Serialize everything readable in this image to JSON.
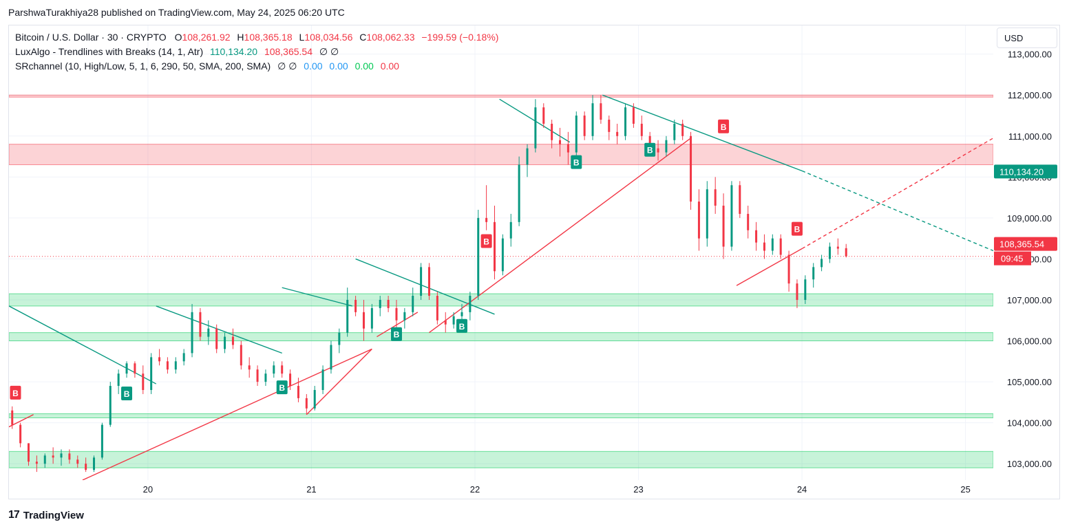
{
  "publisher": "ParshwaTurakhiya28 published on TradingView.com, May 24, 2025 06:20 UTC",
  "legend": {
    "symbol": "Bitcoin / U.S. Dollar · 30 · CRYPTO",
    "open_label": "O",
    "open": "108,261.92",
    "high_label": "H",
    "high": "108,365.18",
    "low_label": "L",
    "low": "108,034.56",
    "close_label": "C",
    "close": "108,062.33",
    "change": "−199.59 (−0.18%)",
    "ind1_name": "LuxAlgo - Trendlines with Breaks (14, 1, Atr)",
    "ind1_v1": "110,134.20",
    "ind1_v2": "108,365.54",
    "ind1_v3": "∅ ∅",
    "ind2_name": "SRchannel (10, High/Low, 5, 1, 6, 290, 50, SMA, 200, SMA)",
    "ind2_na": "∅ ∅",
    "ind2_v1": "0.00",
    "ind2_v2": "0.00",
    "ind2_v3": "0.00",
    "ind2_v4": "0.00"
  },
  "currency_button": "USD",
  "footer_brand": "TradingView",
  "footer_logo": "17",
  "colors": {
    "up": "#089981",
    "down": "#f23645",
    "resistance": "#f23645",
    "support": "#00c853",
    "trend_down": "#089981",
    "trend_up": "#f23645"
  },
  "chart_data": {
    "type": "candlestick",
    "symbol": "Bitcoin / U.S. Dollar",
    "interval": "30",
    "y_ticks": [
      103000,
      104000,
      105000,
      106000,
      107000,
      108000,
      109000,
      110000,
      111000,
      112000,
      113000
    ],
    "y_tick_labels": [
      "103,000.00",
      "104,000.00",
      "105,000.00",
      "106,000.00",
      "107,000.00",
      "108,000.00",
      "109,000.00",
      "110,000.00",
      "111,000.00",
      "112,000.00",
      "113,000.00"
    ],
    "ylim": [
      102600,
      113700
    ],
    "x_ticks": [
      20,
      21,
      22,
      23,
      24,
      25
    ],
    "x_tick_labels": [
      "20",
      "21",
      "22",
      "23",
      "24",
      "25"
    ],
    "xlim": [
      19.15,
      25.17
    ],
    "last_price": 108062.33,
    "price_labels": [
      {
        "value": 110134.2,
        "text": "110,134.20",
        "color": "#089981"
      },
      {
        "value": 108365.54,
        "text": "108,365.54",
        "color": "#f23645"
      }
    ],
    "countdown": "09:45",
    "zones": [
      {
        "type": "resistance",
        "from": 111950,
        "to": 112000
      },
      {
        "type": "resistance",
        "from": 110300,
        "to": 110800
      },
      {
        "type": "support",
        "from": 106850,
        "to": 107150
      },
      {
        "type": "support",
        "from": 106000,
        "to": 106200
      },
      {
        "type": "support",
        "from": 104120,
        "to": 104220
      },
      {
        "type": "support",
        "from": 102900,
        "to": 103300
      }
    ],
    "candles": [
      [
        19.17,
        104300,
        104400,
        103850,
        103950
      ],
      [
        19.22,
        103950,
        104000,
        103400,
        103500
      ],
      [
        19.27,
        103500,
        103500,
        102950,
        103050
      ],
      [
        19.32,
        103050,
        103200,
        102800,
        103000
      ],
      [
        19.37,
        103000,
        103250,
        102900,
        103200
      ],
      [
        19.42,
        103200,
        103400,
        103000,
        103150
      ],
      [
        19.47,
        103150,
        103350,
        102950,
        103250
      ],
      [
        19.52,
        103250,
        103350,
        103000,
        103100
      ],
      [
        19.57,
        103100,
        103200,
        102900,
        103000
      ],
      [
        19.62,
        103000,
        103150,
        102800,
        102850
      ],
      [
        19.67,
        102850,
        103200,
        102800,
        103150
      ],
      [
        19.72,
        103150,
        104000,
        103100,
        103950
      ],
      [
        19.77,
        103950,
        105000,
        103900,
        104900
      ],
      [
        19.82,
        104900,
        105300,
        104700,
        105200
      ],
      [
        19.87,
        105200,
        105500,
        105100,
        105450
      ],
      [
        19.92,
        105450,
        105500,
        105100,
        105200
      ],
      [
        19.97,
        105200,
        105400,
        104700,
        104800
      ],
      [
        20.02,
        104800,
        105700,
        104700,
        105600
      ],
      [
        20.07,
        105600,
        105800,
        105400,
        105500
      ],
      [
        20.12,
        105500,
        105600,
        105200,
        105300
      ],
      [
        20.17,
        105300,
        105600,
        105200,
        105500
      ],
      [
        20.22,
        105500,
        105800,
        105400,
        105700
      ],
      [
        20.27,
        105700,
        106900,
        105600,
        106700
      ],
      [
        20.32,
        106700,
        106800,
        106000,
        106100
      ],
      [
        20.37,
        106100,
        106500,
        105900,
        106300
      ],
      [
        20.42,
        106300,
        106400,
        105700,
        105800
      ],
      [
        20.47,
        105800,
        106200,
        105700,
        106100
      ],
      [
        20.52,
        106100,
        106300,
        105800,
        105900
      ],
      [
        20.57,
        105900,
        106000,
        105300,
        105400
      ],
      [
        20.62,
        105400,
        105600,
        105100,
        105300
      ],
      [
        20.67,
        105300,
        105400,
        104900,
        105000
      ],
      [
        20.72,
        105000,
        105300,
        104900,
        105200
      ],
      [
        20.77,
        105200,
        105500,
        105100,
        105400
      ],
      [
        20.82,
        105400,
        105500,
        105100,
        105200
      ],
      [
        20.87,
        105200,
        105300,
        104800,
        104900
      ],
      [
        20.92,
        104900,
        105100,
        104500,
        104600
      ],
      [
        20.97,
        104600,
        104700,
        104200,
        104350
      ],
      [
        21.02,
        104350,
        104900,
        104300,
        104800
      ],
      [
        21.07,
        104800,
        105400,
        104700,
        105300
      ],
      [
        21.12,
        105300,
        106000,
        105200,
        105900
      ],
      [
        21.17,
        105900,
        106300,
        105700,
        106200
      ],
      [
        21.22,
        106200,
        107300,
        106100,
        107000
      ],
      [
        21.27,
        107000,
        107100,
        106600,
        106700
      ],
      [
        21.32,
        106700,
        107000,
        106000,
        106300
      ],
      [
        21.37,
        106300,
        106900,
        106200,
        106800
      ],
      [
        21.42,
        106800,
        107100,
        106600,
        107000
      ],
      [
        21.47,
        107000,
        107100,
        106700,
        106800
      ],
      [
        21.52,
        106800,
        107000,
        106300,
        106500
      ],
      [
        21.57,
        106500,
        106800,
        106300,
        106700
      ],
      [
        21.62,
        106700,
        107300,
        106600,
        107100
      ],
      [
        21.67,
        107100,
        107900,
        107000,
        107800
      ],
      [
        21.72,
        107800,
        107900,
        107000,
        107100
      ],
      [
        21.77,
        107100,
        107200,
        106400,
        106500
      ],
      [
        21.82,
        106500,
        106700,
        106200,
        106400
      ],
      [
        21.87,
        106400,
        106700,
        106300,
        106600
      ],
      [
        21.92,
        106600,
        106900,
        106400,
        106700
      ],
      [
        21.97,
        106700,
        107200,
        106500,
        107100
      ],
      [
        22.02,
        107100,
        109200,
        107000,
        109000
      ],
      [
        22.07,
        109000,
        109800,
        108700,
        108900
      ],
      [
        22.12,
        108900,
        109300,
        107500,
        107700
      ],
      [
        22.17,
        107700,
        108600,
        107600,
        108500
      ],
      [
        22.22,
        108500,
        109100,
        108300,
        108900
      ],
      [
        22.27,
        108900,
        110500,
        108800,
        110300
      ],
      [
        22.32,
        110300,
        110800,
        110000,
        110700
      ],
      [
        22.37,
        110700,
        111900,
        110600,
        111700
      ],
      [
        22.42,
        111700,
        111800,
        111200,
        111300
      ],
      [
        22.47,
        111300,
        111400,
        110700,
        110900
      ],
      [
        22.52,
        110900,
        111200,
        110500,
        110800
      ],
      [
        22.57,
        110800,
        111100,
        110300,
        110600
      ],
      [
        22.62,
        110600,
        111600,
        110500,
        111500
      ],
      [
        22.67,
        111500,
        111600,
        110900,
        111000
      ],
      [
        22.72,
        111000,
        112000,
        110900,
        111800
      ],
      [
        22.77,
        111800,
        112000,
        111300,
        111400
      ],
      [
        22.82,
        111400,
        111500,
        110900,
        111100
      ],
      [
        22.87,
        111100,
        111300,
        110800,
        111000
      ],
      [
        22.92,
        111000,
        111800,
        110900,
        111700
      ],
      [
        22.97,
        111700,
        111800,
        111200,
        111300
      ],
      [
        23.02,
        111300,
        111500,
        110900,
        111000
      ],
      [
        23.07,
        111000,
        111100,
        110600,
        110700
      ],
      [
        23.12,
        110700,
        110900,
        110400,
        110600
      ],
      [
        23.17,
        110600,
        111000,
        110500,
        110900
      ],
      [
        23.22,
        110900,
        111400,
        110800,
        111300
      ],
      [
        23.27,
        111300,
        111400,
        110900,
        111000
      ],
      [
        23.32,
        111000,
        111100,
        109200,
        109400
      ],
      [
        23.37,
        109400,
        109700,
        108200,
        108500
      ],
      [
        23.42,
        108500,
        109900,
        108300,
        109700
      ],
      [
        23.47,
        109700,
        110000,
        109100,
        109300
      ],
      [
        23.52,
        109300,
        109600,
        108000,
        108300
      ],
      [
        23.57,
        108300,
        109900,
        108200,
        109800
      ],
      [
        23.62,
        109800,
        109900,
        109000,
        109100
      ],
      [
        23.67,
        109100,
        109300,
        108500,
        108700
      ],
      [
        23.72,
        108700,
        108900,
        108200,
        108400
      ],
      [
        23.77,
        108400,
        108600,
        108000,
        108200
      ],
      [
        23.82,
        108200,
        108600,
        108100,
        108500
      ],
      [
        23.87,
        108500,
        108600,
        108000,
        108100
      ],
      [
        23.92,
        108100,
        108200,
        107200,
        107400
      ],
      [
        23.97,
        107400,
        107500,
        106800,
        107000
      ],
      [
        24.02,
        107000,
        107600,
        106900,
        107500
      ],
      [
        24.07,
        107500,
        107900,
        107300,
        107800
      ],
      [
        24.12,
        107800,
        108100,
        107700,
        108000
      ],
      [
        24.17,
        108000,
        108400,
        107900,
        108300
      ],
      [
        24.22,
        108300,
        108500,
        108100,
        108250
      ],
      [
        24.27,
        108262,
        108365,
        108035,
        108062
      ]
    ],
    "trendlines": [
      {
        "type": "down",
        "points": [
          [
            19.15,
            106850
          ],
          [
            20.05,
            104950
          ]
        ]
      },
      {
        "type": "down",
        "points": [
          [
            20.05,
            106850
          ],
          [
            20.82,
            105700
          ]
        ]
      },
      {
        "type": "down",
        "points": [
          [
            20.82,
            107300
          ],
          [
            21.25,
            106850
          ]
        ]
      },
      {
        "type": "down",
        "points": [
          [
            21.27,
            108000
          ],
          [
            22.12,
            106650
          ]
        ]
      },
      {
        "type": "down",
        "points": [
          [
            22.15,
            111900
          ],
          [
            22.58,
            110850
          ]
        ]
      },
      {
        "type": "down",
        "points": [
          [
            22.78,
            112000
          ],
          [
            24.0,
            110150
          ]
        ]
      },
      {
        "type": "down-projection",
        "points": [
          [
            24.0,
            110150
          ],
          [
            25.17,
            108200
          ]
        ]
      },
      {
        "type": "up",
        "points": [
          [
            19.15,
            103900
          ],
          [
            19.3,
            104200
          ]
        ]
      },
      {
        "type": "up",
        "points": [
          [
            19.6,
            102600
          ],
          [
            21.37,
            105800
          ]
        ]
      },
      {
        "type": "up",
        "points": [
          [
            20.97,
            104200
          ],
          [
            21.37,
            105800
          ]
        ]
      },
      {
        "type": "up",
        "points": [
          [
            21.4,
            106100
          ],
          [
            21.65,
            106700
          ]
        ]
      },
      {
        "type": "up",
        "points": [
          [
            21.72,
            106200
          ],
          [
            23.32,
            110950
          ]
        ]
      },
      {
        "type": "up",
        "points": [
          [
            23.6,
            107350
          ],
          [
            24.0,
            108250
          ]
        ]
      },
      {
        "type": "up-projection",
        "points": [
          [
            24.0,
            108250
          ],
          [
            25.17,
            110950
          ]
        ]
      }
    ],
    "signals": [
      {
        "x": 19.19,
        "price": 104500,
        "label": "B",
        "side": "above",
        "color": "#f23645"
      },
      {
        "x": 19.87,
        "price": 104950,
        "label": "B",
        "side": "below",
        "color": "#089981"
      },
      {
        "x": 20.82,
        "price": 105100,
        "label": "B",
        "side": "below",
        "color": "#089981"
      },
      {
        "x": 21.52,
        "price": 106400,
        "label": "B",
        "side": "below",
        "color": "#089981"
      },
      {
        "x": 21.92,
        "price": 106600,
        "label": "B",
        "side": "below",
        "color": "#089981"
      },
      {
        "x": 22.07,
        "price": 108200,
        "label": "B",
        "side": "above",
        "color": "#f23645"
      },
      {
        "x": 22.62,
        "price": 110600,
        "label": "B",
        "side": "below",
        "color": "#089981"
      },
      {
        "x": 23.07,
        "price": 110900,
        "label": "B",
        "side": "below",
        "color": "#089981"
      },
      {
        "x": 23.52,
        "price": 111000,
        "label": "B",
        "side": "above",
        "color": "#f23645"
      },
      {
        "x": 23.97,
        "price": 108500,
        "label": "B",
        "side": "above",
        "color": "#f23645"
      }
    ]
  }
}
